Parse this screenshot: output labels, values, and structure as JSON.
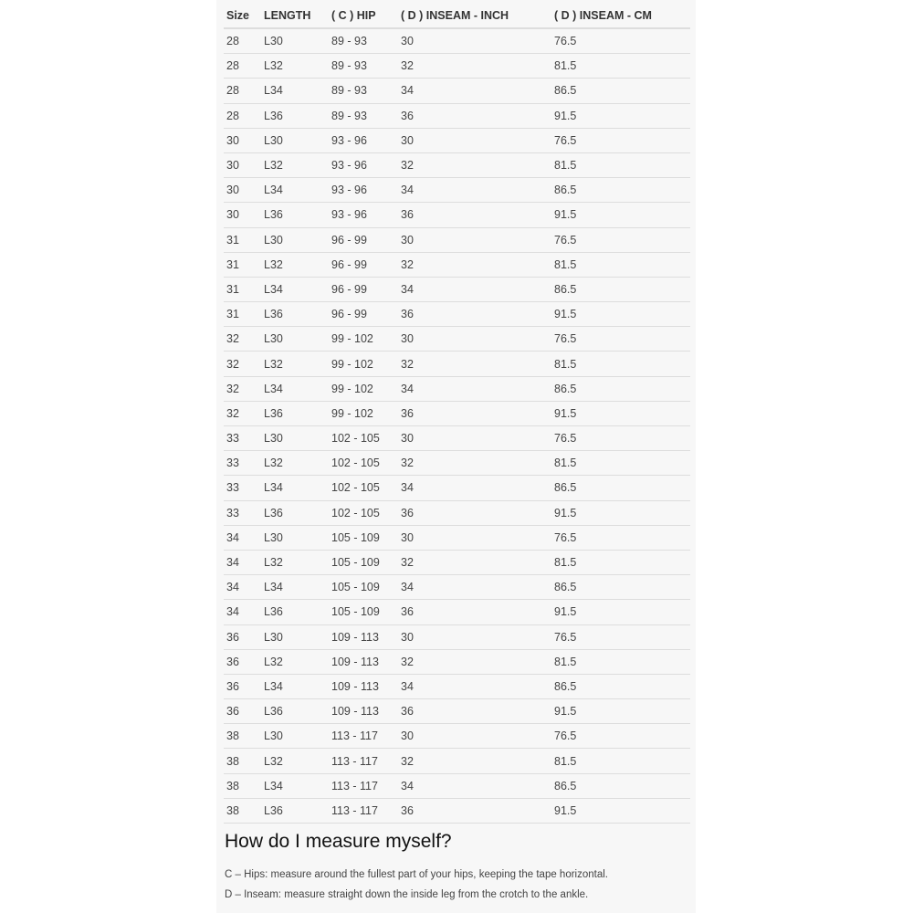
{
  "table": {
    "headers": [
      "Size",
      "LENGTH",
      "( C ) HIP",
      "( D ) INSEAM - INCH",
      "( D ) INSEAM - CM"
    ],
    "rows": [
      [
        "28",
        "L30",
        "89 - 93",
        "30",
        "76.5"
      ],
      [
        "28",
        "L32",
        "89 - 93",
        "32",
        "81.5"
      ],
      [
        "28",
        "L34",
        "89 - 93",
        "34",
        "86.5"
      ],
      [
        "28",
        "L36",
        "89 - 93",
        "36",
        "91.5"
      ],
      [
        "30",
        "L30",
        "93 - 96",
        "30",
        "76.5"
      ],
      [
        "30",
        "L32",
        "93 - 96",
        "32",
        "81.5"
      ],
      [
        "30",
        "L34",
        "93 - 96",
        "34",
        "86.5"
      ],
      [
        "30",
        "L36",
        "93 - 96",
        "36",
        "91.5"
      ],
      [
        "31",
        "L30",
        "96 - 99",
        "30",
        "76.5"
      ],
      [
        "31",
        "L32",
        "96 - 99",
        "32",
        "81.5"
      ],
      [
        "31",
        "L34",
        "96 - 99",
        "34",
        "86.5"
      ],
      [
        "31",
        "L36",
        "96 - 99",
        "36",
        "91.5"
      ],
      [
        "32",
        "L30",
        "99 - 102",
        "30",
        "76.5"
      ],
      [
        "32",
        "L32",
        "99 - 102",
        "32",
        "81.5"
      ],
      [
        "32",
        "L34",
        "99 - 102",
        "34",
        "86.5"
      ],
      [
        "32",
        "L36",
        "99 - 102",
        "36",
        "91.5"
      ],
      [
        "33",
        "L30",
        "102 - 105",
        "30",
        "76.5"
      ],
      [
        "33",
        "L32",
        "102 - 105",
        "32",
        "81.5"
      ],
      [
        "33",
        "L34",
        "102 - 105",
        "34",
        "86.5"
      ],
      [
        "33",
        "L36",
        "102 - 105",
        "36",
        "91.5"
      ],
      [
        "34",
        "L30",
        "105 - 109",
        "30",
        "76.5"
      ],
      [
        "34",
        "L32",
        "105 - 109",
        "32",
        "81.5"
      ],
      [
        "34",
        "L34",
        "105 - 109",
        "34",
        "86.5"
      ],
      [
        "34",
        "L36",
        "105 - 109",
        "36",
        "91.5"
      ],
      [
        "36",
        "L30",
        "109 - 113",
        "30",
        "76.5"
      ],
      [
        "36",
        "L32",
        "109 - 113",
        "32",
        "81.5"
      ],
      [
        "36",
        "L34",
        "109 - 113",
        "34",
        "86.5"
      ],
      [
        "36",
        "L36",
        "109 - 113",
        "36",
        "91.5"
      ],
      [
        "38",
        "L30",
        "113 - 117",
        "30",
        "76.5"
      ],
      [
        "38",
        "L32",
        "113 - 117",
        "32",
        "81.5"
      ],
      [
        "38",
        "L34",
        "113 - 117",
        "34",
        "86.5"
      ],
      [
        "38",
        "L36",
        "113 - 117",
        "36",
        "91.5"
      ]
    ]
  },
  "measure": {
    "title": "How do I measure myself?",
    "hips": "C – Hips: measure around the fullest part of your hips, keeping the tape horizontal.",
    "inseam": "D – Inseam: measure straight down the inside leg from the crotch to the ankle."
  }
}
